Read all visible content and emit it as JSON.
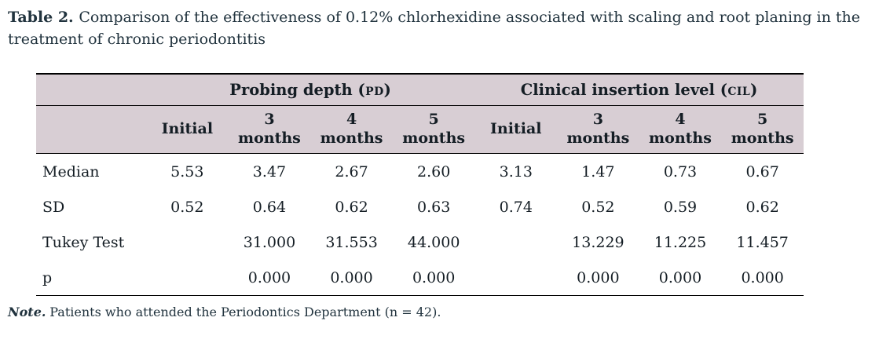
{
  "caption": {
    "label": "Table 2.",
    "text": "Comparison of the effectiveness of 0.12% chlorhexidine associated with scaling and root planing in the treatment of chronic periodontitis"
  },
  "colors": {
    "header_band": "#d8ced4",
    "rule": "#000000",
    "body_text": "#141d24",
    "caption_text": "#21333e"
  },
  "table": {
    "group_headers": [
      {
        "title": "Probing depth",
        "abbr": "(pd)"
      },
      {
        "title": "Clinical insertion level",
        "abbr": "(cil)"
      }
    ],
    "column_headers": [
      "Initial",
      "3\nmonths",
      "4\nmonths",
      "5\nmonths",
      "Initial",
      "3\nmonths",
      "4\nmonths",
      "5\nmonths"
    ],
    "rows": [
      {
        "label": "Median",
        "values": [
          "5.53",
          "3.47",
          "2.67",
          "2.60",
          "3.13",
          "1.47",
          "0.73",
          "0.67"
        ]
      },
      {
        "label": "SD",
        "values": [
          "0.52",
          "0.64",
          "0.62",
          "0.63",
          "0.74",
          "0.52",
          "0.59",
          "0.62"
        ]
      },
      {
        "label": "Tukey Test",
        "values": [
          "",
          "31.000",
          "31.553",
          "44.000",
          "",
          "13.229",
          "11.225",
          "11.457"
        ]
      },
      {
        "label": "p",
        "values": [
          "",
          "0.000",
          "0.000",
          "0.000",
          "",
          "0.000",
          "0.000",
          "0.000"
        ]
      }
    ]
  },
  "note": {
    "label": "Note.",
    "text": "Patients who attended the Periodontics Department (n = 42)."
  }
}
